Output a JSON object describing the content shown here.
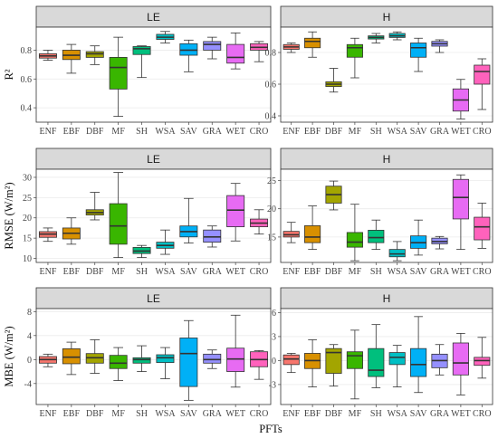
{
  "figure": {
    "xlabel": "PFTs"
  },
  "pfts": [
    "ENF",
    "EBF",
    "DBF",
    "MF",
    "SH",
    "WSA",
    "SAV",
    "GRA",
    "WET",
    "CRO"
  ],
  "colors": {
    "ENF": "#F8766D",
    "EBF": "#D89000",
    "DBF": "#A3A500",
    "MF": "#39B600",
    "SH": "#00BF7D",
    "WSA": "#00BFC4",
    "SAV": "#00B0F6",
    "GRA": "#9590FF",
    "WET": "#E76BF3",
    "CRO": "#FF62BC"
  },
  "chart_data": [
    {
      "type": "box",
      "strip": "LE",
      "ylabel": "R²",
      "ylim": [
        0.3,
        0.96
      ],
      "yticks": [
        0.4,
        0.6,
        0.8
      ],
      "boxes": [
        {
          "name": "ENF",
          "whisker_low": 0.73,
          "q1": 0.745,
          "median": 0.76,
          "q3": 0.775,
          "whisker_high": 0.8
        },
        {
          "name": "EBF",
          "whisker_low": 0.64,
          "q1": 0.735,
          "median": 0.765,
          "q3": 0.8,
          "whisker_high": 0.84
        },
        {
          "name": "DBF",
          "whisker_low": 0.7,
          "q1": 0.75,
          "median": 0.775,
          "q3": 0.79,
          "whisker_high": 0.83
        },
        {
          "name": "MF",
          "whisker_low": 0.34,
          "q1": 0.53,
          "median": 0.68,
          "q3": 0.75,
          "whisker_high": 0.89
        },
        {
          "name": "SH",
          "whisker_low": 0.61,
          "q1": 0.77,
          "median": 0.81,
          "q3": 0.825,
          "whisker_high": 0.83
        },
        {
          "name": "WSA",
          "whisker_low": 0.85,
          "q1": 0.875,
          "median": 0.89,
          "q3": 0.91,
          "whisker_high": 0.93
        },
        {
          "name": "SAV",
          "whisker_low": 0.65,
          "q1": 0.765,
          "median": 0.8,
          "q3": 0.845,
          "whisker_high": 0.87
        },
        {
          "name": "GRA",
          "whisker_low": 0.74,
          "q1": 0.8,
          "median": 0.84,
          "q3": 0.86,
          "whisker_high": 0.89
        },
        {
          "name": "WET",
          "whisker_low": 0.67,
          "q1": 0.71,
          "median": 0.75,
          "q3": 0.84,
          "whisker_high": 0.92
        },
        {
          "name": "CRO",
          "whisker_low": 0.72,
          "q1": 0.8,
          "median": 0.82,
          "q3": 0.845,
          "whisker_high": 0.86
        }
      ]
    },
    {
      "type": "box",
      "strip": "H",
      "ylabel": "",
      "ylim": [
        0.36,
        0.96
      ],
      "yticks": [
        0.4,
        0.6,
        0.8
      ],
      "boxes": [
        {
          "name": "ENF",
          "whisker_low": 0.8,
          "q1": 0.82,
          "median": 0.835,
          "q3": 0.85,
          "whisker_high": 0.86
        },
        {
          "name": "EBF",
          "whisker_low": 0.77,
          "q1": 0.83,
          "median": 0.87,
          "q3": 0.89,
          "whisker_high": 0.93
        },
        {
          "name": "DBF",
          "whisker_low": 0.55,
          "q1": 0.585,
          "median": 0.6,
          "q3": 0.615,
          "whisker_high": 0.7
        },
        {
          "name": "MF",
          "whisker_low": 0.64,
          "q1": 0.77,
          "median": 0.83,
          "q3": 0.85,
          "whisker_high": 0.89
        },
        {
          "name": "SH",
          "whisker_low": 0.86,
          "q1": 0.885,
          "median": 0.895,
          "q3": 0.905,
          "whisker_high": 0.92
        },
        {
          "name": "WSA",
          "whisker_low": 0.88,
          "q1": 0.895,
          "median": 0.905,
          "q3": 0.92,
          "whisker_high": 0.93
        },
        {
          "name": "SAV",
          "whisker_low": 0.68,
          "q1": 0.77,
          "median": 0.83,
          "q3": 0.86,
          "whisker_high": 0.89
        },
        {
          "name": "GRA",
          "whisker_low": 0.8,
          "q1": 0.84,
          "median": 0.855,
          "q3": 0.87,
          "whisker_high": 0.88
        },
        {
          "name": "WET",
          "whisker_low": 0.38,
          "q1": 0.43,
          "median": 0.5,
          "q3": 0.57,
          "whisker_high": 0.63
        },
        {
          "name": "CRO",
          "whisker_low": 0.44,
          "q1": 0.6,
          "median": 0.68,
          "q3": 0.72,
          "whisker_high": 0.76
        }
      ]
    },
    {
      "type": "box",
      "strip": "LE",
      "ylabel": "RMSE (W/m²)",
      "ylim": [
        9,
        32
      ],
      "yticks": [
        10,
        15,
        20,
        25,
        30
      ],
      "boxes": [
        {
          "name": "ENF",
          "whisker_low": 14.2,
          "q1": 15.2,
          "median": 16.0,
          "q3": 16.6,
          "whisker_high": 17.5
        },
        {
          "name": "EBF",
          "whisker_low": 13.5,
          "q1": 14.8,
          "median": 16.2,
          "q3": 17.5,
          "whisker_high": 20.0
        },
        {
          "name": "DBF",
          "whisker_low": 19.5,
          "q1": 20.7,
          "median": 21.3,
          "q3": 22.0,
          "whisker_high": 26.3
        },
        {
          "name": "MF",
          "whisker_low": 10.2,
          "q1": 13.5,
          "median": 18.0,
          "q3": 23.5,
          "whisker_high": 31.2
        },
        {
          "name": "SH",
          "whisker_low": 10.2,
          "q1": 11.2,
          "median": 11.8,
          "q3": 12.7,
          "whisker_high": 13.2
        },
        {
          "name": "WSA",
          "whisker_low": 11.0,
          "q1": 12.5,
          "median": 13.2,
          "q3": 14.0,
          "whisker_high": 17.0
        },
        {
          "name": "SAV",
          "whisker_low": 13.8,
          "q1": 15.3,
          "median": 16.6,
          "q3": 18.0,
          "whisker_high": 24.8
        },
        {
          "name": "GRA",
          "whisker_low": 12.8,
          "q1": 14.0,
          "median": 15.3,
          "q3": 17.0,
          "whisker_high": 18.0
        },
        {
          "name": "WET",
          "whisker_low": 14.3,
          "q1": 17.8,
          "median": 21.9,
          "q3": 25.5,
          "whisker_high": 28.5
        },
        {
          "name": "CRO",
          "whisker_low": 16.0,
          "q1": 17.8,
          "median": 18.7,
          "q3": 19.7,
          "whisker_high": 22.0
        }
      ]
    },
    {
      "type": "box",
      "strip": "H",
      "ylabel": "",
      "ylim": [
        10.5,
        27
      ],
      "yticks": [
        15,
        20,
        25
      ],
      "boxes": [
        {
          "name": "ENF",
          "whisker_low": 14.0,
          "q1": 15.0,
          "median": 15.4,
          "q3": 16.0,
          "whisker_high": 17.6
        },
        {
          "name": "EBF",
          "whisker_low": 12.8,
          "q1": 14.0,
          "median": 15.0,
          "q3": 17.0,
          "whisker_high": 20.5
        },
        {
          "name": "DBF",
          "whisker_low": 19.8,
          "q1": 21.0,
          "median": 22.5,
          "q3": 24.0,
          "whisker_high": 24.9
        },
        {
          "name": "MF",
          "whisker_low": 10.8,
          "q1": 13.2,
          "median": 14.1,
          "q3": 15.8,
          "whisker_high": 20.8
        },
        {
          "name": "SH",
          "whisker_low": 12.8,
          "q1": 14.0,
          "median": 14.9,
          "q3": 16.2,
          "whisker_high": 18.0
        },
        {
          "name": "WSA",
          "whisker_low": 10.8,
          "q1": 11.5,
          "median": 12.0,
          "q3": 12.8,
          "whisker_high": 14.2
        },
        {
          "name": "SAV",
          "whisker_low": 11.8,
          "q1": 13.0,
          "median": 14.0,
          "q3": 15.2,
          "whisker_high": 18.0
        },
        {
          "name": "GRA",
          "whisker_low": 12.9,
          "q1": 13.8,
          "median": 14.2,
          "q3": 14.8,
          "whisker_high": 15.1
        },
        {
          "name": "WET",
          "whisker_low": 12.8,
          "q1": 18.2,
          "median": 22.0,
          "q3": 25.2,
          "whisker_high": 26.0
        },
        {
          "name": "CRO",
          "whisker_low": 13.0,
          "q1": 14.5,
          "median": 16.8,
          "q3": 18.5,
          "whisker_high": 21.0
        }
      ]
    },
    {
      "type": "box",
      "strip": "LE",
      "ylabel": "MBE (W/m²)",
      "ylim": [
        -7.5,
        8.5
      ],
      "yticks": [
        -4,
        0,
        4,
        8
      ],
      "boxes": [
        {
          "name": "ENF",
          "whisker_low": -1.2,
          "q1": -0.6,
          "median": 0.0,
          "q3": 0.5,
          "whisker_high": 0.9
        },
        {
          "name": "EBF",
          "whisker_low": -2.5,
          "q1": -0.7,
          "median": 0.4,
          "q3": 1.8,
          "whisker_high": 2.9
        },
        {
          "name": "DBF",
          "whisker_low": -2.3,
          "q1": -0.6,
          "median": 0.3,
          "q3": 1.0,
          "whisker_high": 3.3
        },
        {
          "name": "MF",
          "whisker_low": -3.5,
          "q1": -1.5,
          "median": -0.6,
          "q3": 0.7,
          "whisker_high": 2.0
        },
        {
          "name": "SH",
          "whisker_low": -2.0,
          "q1": -0.6,
          "median": 0.0,
          "q3": 0.3,
          "whisker_high": 2.3
        },
        {
          "name": "WSA",
          "whisker_low": -3.2,
          "q1": -0.5,
          "median": 0.3,
          "q3": 0.8,
          "whisker_high": 2.0
        },
        {
          "name": "SAV",
          "whisker_low": -6.8,
          "q1": -4.5,
          "median": 1.0,
          "q3": 3.6,
          "whisker_high": 6.5
        },
        {
          "name": "GRA",
          "whisker_low": -1.5,
          "q1": -0.6,
          "median": 0.0,
          "q3": 0.9,
          "whisker_high": 1.6
        },
        {
          "name": "WET",
          "whisker_low": -4.6,
          "q1": -2.0,
          "median": 0.1,
          "q3": 1.9,
          "whisker_high": 7.4
        },
        {
          "name": "CRO",
          "whisker_low": -3.3,
          "q1": -1.2,
          "median": 0.0,
          "q3": 1.3,
          "whisker_high": 1.5
        }
      ]
    },
    {
      "type": "box",
      "strip": "H",
      "ylabel": "",
      "ylim": [
        -5.5,
        6.5
      ],
      "yticks": [
        -3,
        0,
        3,
        6
      ],
      "boxes": [
        {
          "name": "ENF",
          "whisker_low": -1.5,
          "q1": -0.5,
          "median": 0.2,
          "q3": 0.7,
          "whisker_high": 0.9
        },
        {
          "name": "EBF",
          "whisker_low": -3.3,
          "q1": -1.0,
          "median": 0.0,
          "q3": 0.9,
          "whisker_high": 2.6
        },
        {
          "name": "DBF",
          "whisker_low": -3.2,
          "q1": -1.6,
          "median": 1.0,
          "q3": 1.5,
          "whisker_high": 2.0
        },
        {
          "name": "MF",
          "whisker_low": -4.8,
          "q1": -1.0,
          "median": 0.6,
          "q3": 1.1,
          "whisker_high": 3.8
        },
        {
          "name": "SH",
          "whisker_low": -3.4,
          "q1": -2.0,
          "median": -1.2,
          "q3": 1.5,
          "whisker_high": 4.5
        },
        {
          "name": "WSA",
          "whisker_low": -3.3,
          "q1": -0.5,
          "median": 0.4,
          "q3": 1.0,
          "whisker_high": 1.9
        },
        {
          "name": "SAV",
          "whisker_low": -4.0,
          "q1": -2.0,
          "median": -0.5,
          "q3": 1.5,
          "whisker_high": 5.5
        },
        {
          "name": "GRA",
          "whisker_low": -1.8,
          "q1": -0.9,
          "median": 0.0,
          "q3": 0.8,
          "whisker_high": 2.0
        },
        {
          "name": "WET",
          "whisker_low": -4.3,
          "q1": -1.8,
          "median": -0.3,
          "q3": 2.2,
          "whisker_high": 3.4
        },
        {
          "name": "CRO",
          "whisker_low": -2.2,
          "q1": -0.6,
          "median": 0.0,
          "q3": 0.4,
          "whisker_high": 2.9
        }
      ]
    }
  ]
}
